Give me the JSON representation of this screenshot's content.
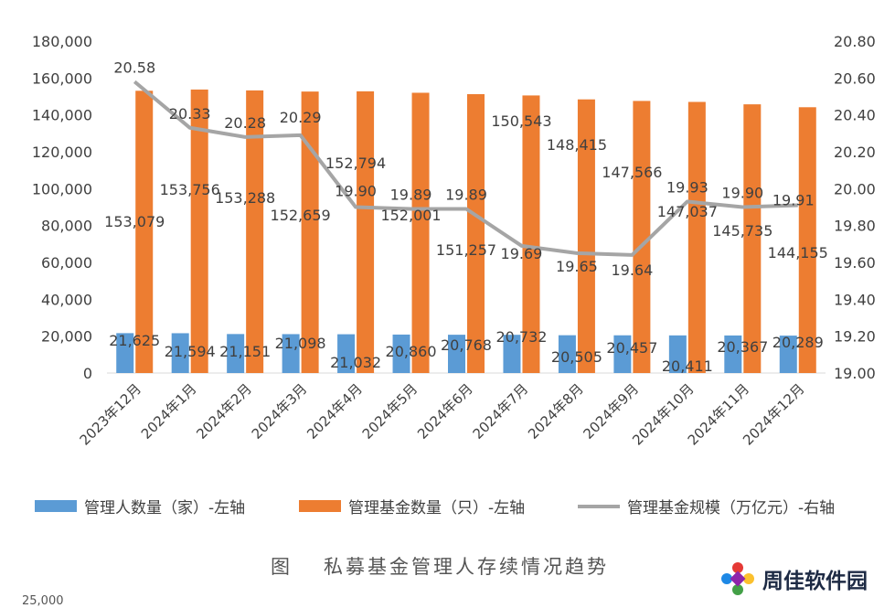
{
  "chart_data": {
    "type": "bar",
    "categories": [
      "2023年12月",
      "2024年1月",
      "2024年2月",
      "2024年3月",
      "2024年4月",
      "2024年5月",
      "2024年6月",
      "2024年7月",
      "2024年8月",
      "2024年9月",
      "2024年10月",
      "2024年11月",
      "2024年12月"
    ],
    "series": [
      {
        "name": "管理人数量（家）-左轴",
        "type": "bar",
        "axis": "left",
        "color": "#5b9bd5",
        "values": [
          21625,
          21594,
          21151,
          21098,
          21032,
          20860,
          20768,
          20732,
          20505,
          20457,
          20411,
          20367,
          20289
        ],
        "labels": [
          "21,625",
          "21,594",
          "21,151",
          "21,098",
          "21,032",
          "20,860",
          "20,768",
          "20,732",
          "20,505",
          "20,457",
          "20,411",
          "20,367",
          "20,289"
        ]
      },
      {
        "name": "管理基金数量（只）-左轴",
        "type": "bar",
        "axis": "left",
        "color": "#ed7d31",
        "values": [
          153079,
          153756,
          153288,
          152659,
          152794,
          152001,
          151257,
          150543,
          148415,
          147566,
          147037,
          145735,
          144155
        ],
        "labels": [
          "153,079",
          "153,756",
          "153,288",
          "152,659",
          "152,794",
          "152,001",
          "151,257",
          "150,543",
          "148,415",
          "147,566",
          "147,037",
          "145,735",
          "144,155"
        ]
      },
      {
        "name": "管理基金规模（万亿元）-右轴",
        "type": "line",
        "axis": "right",
        "color": "#a5a5a5",
        "values": [
          20.58,
          20.33,
          20.28,
          20.29,
          19.9,
          19.89,
          19.89,
          19.69,
          19.65,
          19.64,
          19.93,
          19.9,
          19.91
        ],
        "labels": [
          "20.58",
          "20.33",
          "20.28",
          "20.29",
          "19.90",
          "19.89",
          "19.89",
          "19.69",
          "19.65",
          "19.64",
          "19.93",
          "19.90",
          "19.91"
        ]
      }
    ],
    "left_axis": {
      "ylim": [
        0,
        180000
      ],
      "ticks": [
        "0",
        "20,000",
        "40,000",
        "60,000",
        "80,000",
        "100,000",
        "120,000",
        "140,000",
        "160,000",
        "180,000"
      ]
    },
    "right_axis": {
      "ylim": [
        19.0,
        20.8
      ],
      "ticks": [
        "19.00",
        "19.20",
        "19.40",
        "19.60",
        "19.80",
        "20.00",
        "20.20",
        "20.40",
        "20.60",
        "20.80"
      ]
    },
    "legend_position": "bottom",
    "grid": false
  },
  "caption": {
    "figure_label": "图",
    "title": "私募基金管理人存续情况趋势"
  },
  "partial_text": "25,000",
  "watermark": {
    "text": "周佳软件园",
    "logo_icon": "pinwheel-logo-icon"
  }
}
